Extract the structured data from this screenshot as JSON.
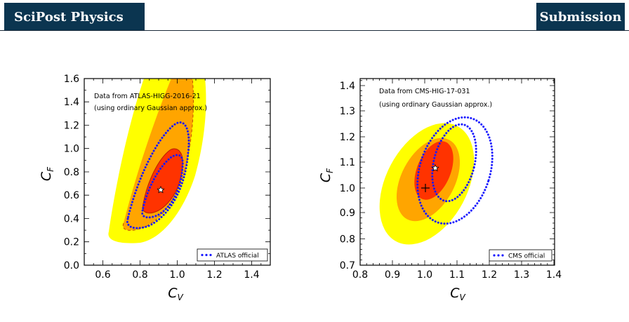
{
  "header": {
    "journal": "SciPost Physics",
    "tag": "Submission"
  },
  "colors": {
    "header_bg": "#0b3550",
    "yellow": "#ffff00",
    "orange": "#ffa500",
    "red": "#ff3300",
    "official_dots": "#1a1aff"
  },
  "chart_data": [
    {
      "type": "contour",
      "annotation_lines": [
        "Data from ATLAS-HIGG-2016-21",
        "(using ordinary Gaussian approx.)"
      ],
      "xlabel": "C_V",
      "ylabel": "C_F",
      "xlim": [
        0.5,
        1.5
      ],
      "ylim": [
        0.0,
        1.6
      ],
      "xticks": [
        "0.6",
        "0.8",
        "1.0",
        "1.2",
        "1.4"
      ],
      "yticks": [
        "0.0",
        "0.2",
        "0.4",
        "0.6",
        "0.8",
        "1.0",
        "1.2",
        "1.4",
        "1.6"
      ],
      "legend": "ATLAS official",
      "legend_position": "bottom-right",
      "best_fit": [
        0.91,
        0.65
      ]
    },
    {
      "type": "contour",
      "annotation_lines": [
        "Data from CMS-HIG-17-031",
        "(using ordinary Gaussian approx.)"
      ],
      "xlabel": "C_V",
      "ylabel": "C_F",
      "xlim": [
        0.8,
        1.4
      ],
      "ylim": [
        0.7,
        1.45
      ],
      "xticks": [
        "0.8",
        "0.9",
        "1.0",
        "1.1",
        "1.2",
        "1.3",
        "1.4"
      ],
      "yticks": [
        "0.7",
        "0.8",
        "0.9",
        "1.0",
        "1.1",
        "1.2",
        "1.3",
        "1.4"
      ],
      "legend": "CMS official",
      "legend_position": "bottom-right",
      "best_fit": [
        1.03,
        1.08
      ],
      "sm_point": [
        1.0,
        1.0
      ]
    }
  ]
}
